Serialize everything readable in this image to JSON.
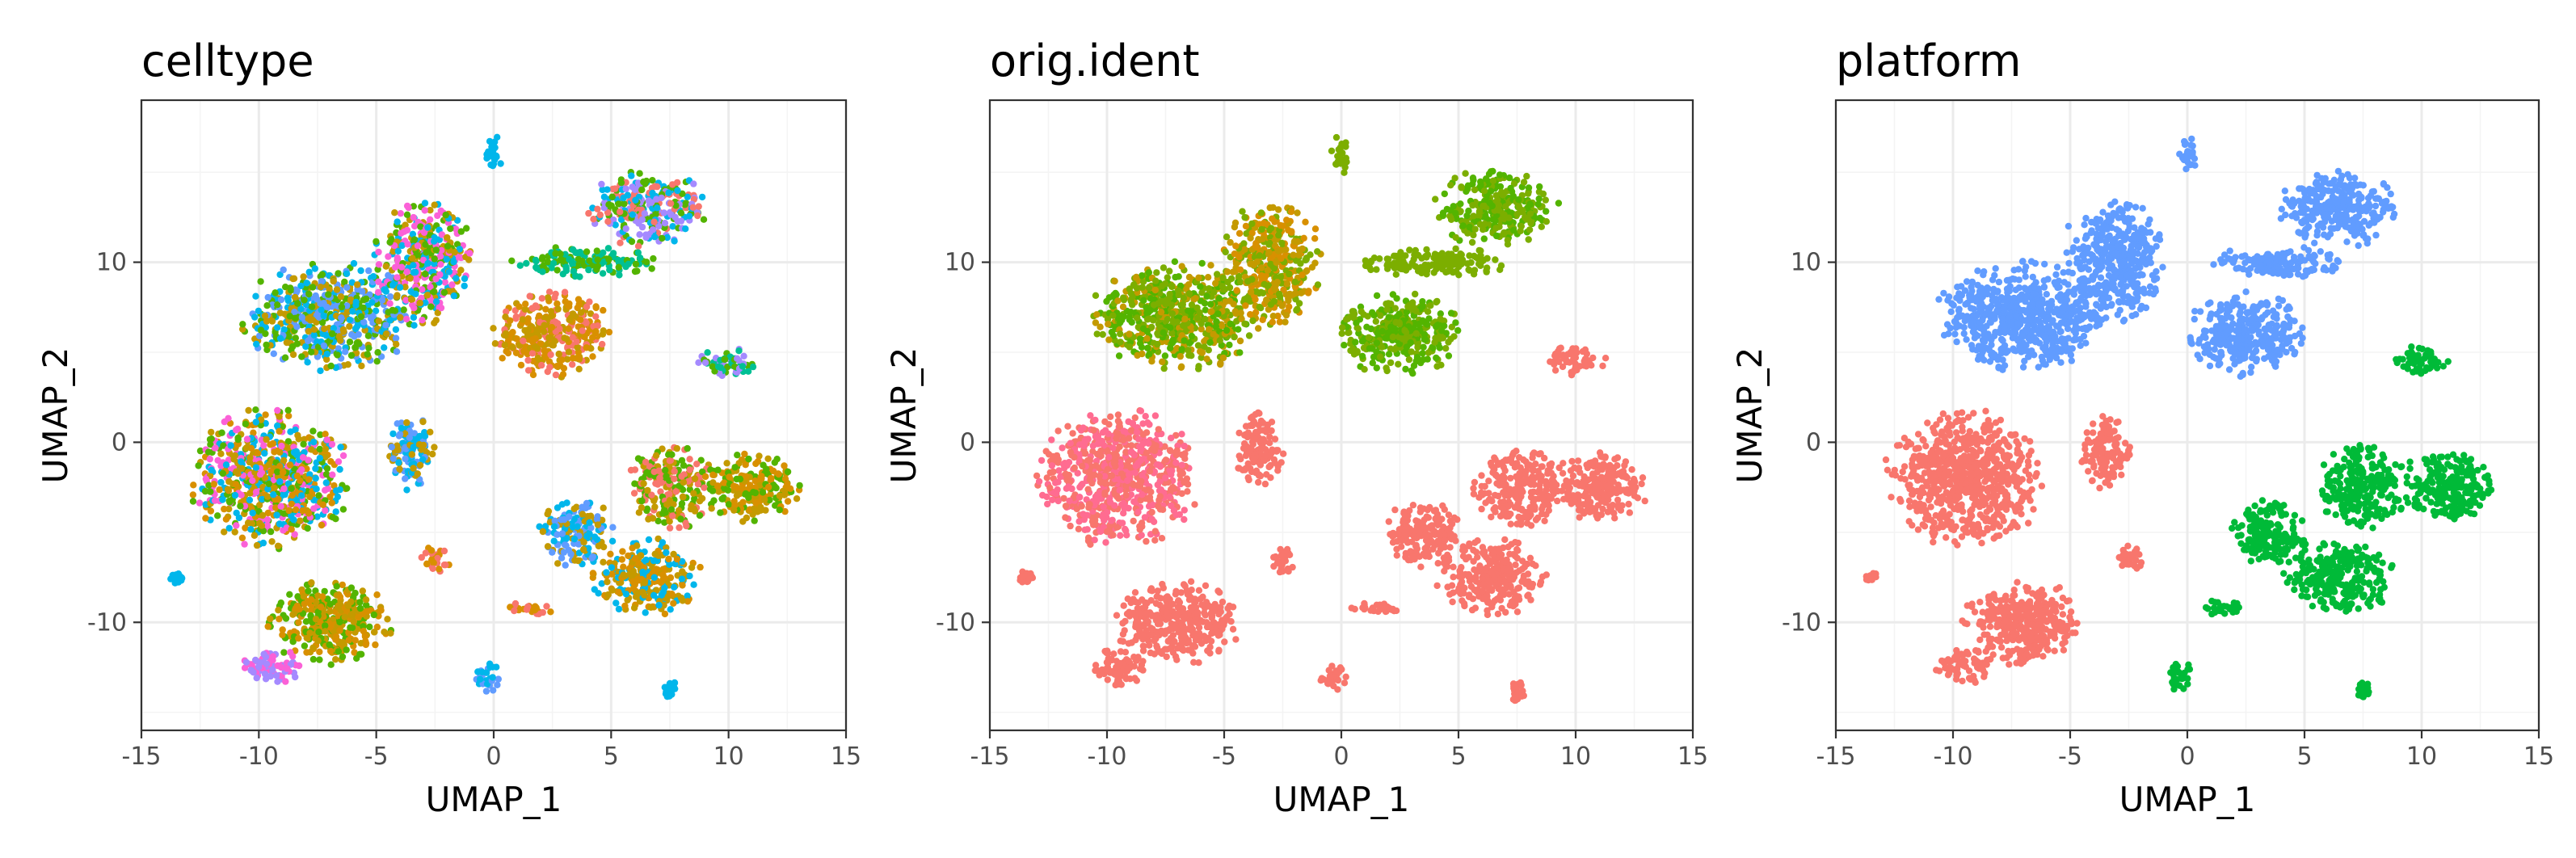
{
  "chart_data": [
    {
      "type": "scatter",
      "title": "celltype",
      "xlabel": "UMAP_1",
      "ylabel": "UMAP_2",
      "xlim": [
        -15,
        15
      ],
      "ylim": [
        -16,
        19
      ],
      "xticks": [
        "-15",
        "-10",
        "-5",
        "0",
        "5",
        "10",
        "15"
      ],
      "yticks": [
        "-10",
        "0",
        "10"
      ],
      "grid": true,
      "legend": "none",
      "colors": [
        "#F8766D",
        "#C49A00",
        "#53B400",
        "#00C094",
        "#00B6EB",
        "#A58AFF",
        "#FB61D7",
        "#D89000",
        "#619CFF"
      ],
      "clusters": [
        {
          "cx": -9.5,
          "cy": -2.0,
          "rx": 3.2,
          "ry": 3.6,
          "colors": [
            "#C49A00",
            "#53B400",
            "#FB61D7",
            "#00B6EB",
            "#D89000"
          ]
        },
        {
          "cx": -7.0,
          "cy": 7.0,
          "rx": 3.5,
          "ry": 2.8,
          "colors": [
            "#00B6EB",
            "#619CFF",
            "#C49A00",
            "#53B400"
          ]
        },
        {
          "cx": -3.0,
          "cy": 10.0,
          "rx": 2.0,
          "ry": 3.2,
          "colors": [
            "#C49A00",
            "#53B400",
            "#FB61D7",
            "#00B6EB"
          ]
        },
        {
          "cx": -3.5,
          "cy": -0.5,
          "rx": 1.0,
          "ry": 2.0,
          "colors": [
            "#619CFF",
            "#00B6EB",
            "#C49A00"
          ]
        },
        {
          "cx": -7.0,
          "cy": -10.0,
          "rx": 2.5,
          "ry": 2.2,
          "colors": [
            "#C49A00",
            "#D89000",
            "#53B400"
          ]
        },
        {
          "cx": -9.5,
          "cy": -12.5,
          "rx": 1.2,
          "ry": 1.0,
          "colors": [
            "#FB61D7",
            "#A58AFF"
          ]
        },
        {
          "cx": 2.5,
          "cy": 6.0,
          "rx": 2.4,
          "ry": 2.2,
          "colors": [
            "#D89000",
            "#F8766D",
            "#C49A00"
          ]
        },
        {
          "cx": 6.5,
          "cy": 13.0,
          "rx": 2.4,
          "ry": 2.0,
          "colors": [
            "#53B400",
            "#00B6EB",
            "#F8766D",
            "#A58AFF"
          ]
        },
        {
          "cx": 4.0,
          "cy": 10.0,
          "rx": 3.0,
          "ry": 0.8,
          "colors": [
            "#53B400",
            "#00C094"
          ]
        },
        {
          "cx": 3.5,
          "cy": -5.0,
          "rx": 1.5,
          "ry": 1.8,
          "colors": [
            "#00B6EB",
            "#619CFF",
            "#C49A00"
          ]
        },
        {
          "cx": 7.5,
          "cy": -2.5,
          "rx": 1.8,
          "ry": 2.2,
          "colors": [
            "#C49A00",
            "#F8766D",
            "#53B400"
          ]
        },
        {
          "cx": 11.0,
          "cy": -2.5,
          "rx": 2.0,
          "ry": 1.8,
          "colors": [
            "#D89000",
            "#C49A00",
            "#53B400"
          ]
        },
        {
          "cx": 6.5,
          "cy": -7.5,
          "rx": 2.2,
          "ry": 2.0,
          "colors": [
            "#D89000",
            "#C49A00",
            "#00B6EB"
          ]
        },
        {
          "cx": 10.0,
          "cy": 4.5,
          "rx": 1.2,
          "ry": 0.8,
          "colors": [
            "#00C094",
            "#A58AFF",
            "#53B400"
          ]
        },
        {
          "cx": 0.0,
          "cy": 16.0,
          "rx": 0.4,
          "ry": 1.0,
          "colors": [
            "#00B6EB"
          ]
        },
        {
          "cx": -0.3,
          "cy": -13.0,
          "rx": 0.6,
          "ry": 0.8,
          "colors": [
            "#619CFF",
            "#00B6EB"
          ]
        },
        {
          "cx": 7.5,
          "cy": -13.8,
          "rx": 0.3,
          "ry": 0.6,
          "colors": [
            "#00B6EB"
          ]
        },
        {
          "cx": 1.5,
          "cy": -9.2,
          "rx": 1.0,
          "ry": 0.4,
          "colors": [
            "#D89000",
            "#F8766D"
          ]
        },
        {
          "cx": -2.5,
          "cy": -6.5,
          "rx": 0.6,
          "ry": 0.8,
          "colors": [
            "#D89000",
            "#F8766D"
          ]
        },
        {
          "cx": -13.5,
          "cy": -7.5,
          "rx": 0.3,
          "ry": 0.3,
          "colors": [
            "#00B6EB"
          ]
        }
      ]
    },
    {
      "type": "scatter",
      "title": "orig.ident",
      "xlabel": "UMAP_1",
      "ylabel": "UMAP_2",
      "xlim": [
        -15,
        15
      ],
      "ylim": [
        -16,
        19
      ],
      "xticks": [
        "-15",
        "-10",
        "-5",
        "0",
        "5",
        "10",
        "15"
      ],
      "yticks": [
        "-10",
        "0",
        "10"
      ],
      "grid": true,
      "legend": "none",
      "colors": [
        "#F8766D",
        "#FF6C91",
        "#7CAE00",
        "#C49A00",
        "#53B400"
      ],
      "clusters": [
        {
          "cx": -9.5,
          "cy": -2.0,
          "rx": 3.2,
          "ry": 3.6,
          "colors": [
            "#FF6C91",
            "#F8766D"
          ]
        },
        {
          "cx": -7.0,
          "cy": 7.0,
          "rx": 3.5,
          "ry": 2.8,
          "colors": [
            "#7CAE00",
            "#C49A00",
            "#53B400"
          ]
        },
        {
          "cx": -3.0,
          "cy": 10.0,
          "rx": 2.0,
          "ry": 3.2,
          "colors": [
            "#7CAE00",
            "#C49A00",
            "#D89000"
          ]
        },
        {
          "cx": -3.5,
          "cy": -0.5,
          "rx": 1.0,
          "ry": 2.0,
          "colors": [
            "#F8766D"
          ]
        },
        {
          "cx": -7.0,
          "cy": -10.0,
          "rx": 2.5,
          "ry": 2.2,
          "colors": [
            "#F8766D"
          ]
        },
        {
          "cx": -9.5,
          "cy": -12.5,
          "rx": 1.2,
          "ry": 1.0,
          "colors": [
            "#F8766D"
          ]
        },
        {
          "cx": 2.5,
          "cy": 6.0,
          "rx": 2.4,
          "ry": 2.2,
          "colors": [
            "#7CAE00",
            "#53B400"
          ]
        },
        {
          "cx": 6.5,
          "cy": 13.0,
          "rx": 2.4,
          "ry": 2.0,
          "colors": [
            "#7CAE00",
            "#53B400"
          ]
        },
        {
          "cx": 4.0,
          "cy": 10.0,
          "rx": 3.0,
          "ry": 0.8,
          "colors": [
            "#7CAE00"
          ]
        },
        {
          "cx": 3.5,
          "cy": -5.0,
          "rx": 1.5,
          "ry": 1.8,
          "colors": [
            "#F8766D"
          ]
        },
        {
          "cx": 7.5,
          "cy": -2.5,
          "rx": 1.8,
          "ry": 2.2,
          "colors": [
            "#F8766D"
          ]
        },
        {
          "cx": 11.0,
          "cy": -2.5,
          "rx": 2.0,
          "ry": 1.8,
          "colors": [
            "#F8766D"
          ]
        },
        {
          "cx": 6.5,
          "cy": -7.5,
          "rx": 2.2,
          "ry": 2.0,
          "colors": [
            "#F8766D"
          ]
        },
        {
          "cx": 10.0,
          "cy": 4.5,
          "rx": 1.2,
          "ry": 0.8,
          "colors": [
            "#F8766D"
          ]
        },
        {
          "cx": 0.0,
          "cy": 16.0,
          "rx": 0.4,
          "ry": 1.0,
          "colors": [
            "#7CAE00"
          ]
        },
        {
          "cx": -0.3,
          "cy": -13.0,
          "rx": 0.6,
          "ry": 0.8,
          "colors": [
            "#F8766D"
          ]
        },
        {
          "cx": 7.5,
          "cy": -13.8,
          "rx": 0.3,
          "ry": 0.6,
          "colors": [
            "#F8766D"
          ]
        },
        {
          "cx": 1.5,
          "cy": -9.2,
          "rx": 1.0,
          "ry": 0.4,
          "colors": [
            "#F8766D"
          ]
        },
        {
          "cx": -2.5,
          "cy": -6.5,
          "rx": 0.6,
          "ry": 0.8,
          "colors": [
            "#F8766D"
          ]
        },
        {
          "cx": -13.5,
          "cy": -7.5,
          "rx": 0.3,
          "ry": 0.3,
          "colors": [
            "#F8766D"
          ]
        }
      ]
    },
    {
      "type": "scatter",
      "title": "platform",
      "xlabel": "UMAP_1",
      "ylabel": "UMAP_2",
      "xlim": [
        -15,
        15
      ],
      "ylim": [
        -16,
        19
      ],
      "xticks": [
        "-15",
        "-10",
        "-5",
        "0",
        "5",
        "10",
        "15"
      ],
      "yticks": [
        "-10",
        "0",
        "10"
      ],
      "grid": true,
      "legend": "none",
      "colors": [
        "#F8766D",
        "#00BA38",
        "#619CFF"
      ],
      "clusters": [
        {
          "cx": -9.5,
          "cy": -2.0,
          "rx": 3.2,
          "ry": 3.6,
          "colors": [
            "#F8766D"
          ]
        },
        {
          "cx": -7.0,
          "cy": 7.0,
          "rx": 3.5,
          "ry": 2.8,
          "colors": [
            "#619CFF"
          ]
        },
        {
          "cx": -3.0,
          "cy": 10.0,
          "rx": 2.0,
          "ry": 3.2,
          "colors": [
            "#619CFF"
          ]
        },
        {
          "cx": -3.5,
          "cy": -0.5,
          "rx": 1.0,
          "ry": 2.0,
          "colors": [
            "#F8766D"
          ]
        },
        {
          "cx": -7.0,
          "cy": -10.0,
          "rx": 2.5,
          "ry": 2.2,
          "colors": [
            "#F8766D"
          ]
        },
        {
          "cx": -9.5,
          "cy": -12.5,
          "rx": 1.2,
          "ry": 1.0,
          "colors": [
            "#F8766D"
          ]
        },
        {
          "cx": 2.5,
          "cy": 6.0,
          "rx": 2.4,
          "ry": 2.2,
          "colors": [
            "#619CFF"
          ]
        },
        {
          "cx": 6.5,
          "cy": 13.0,
          "rx": 2.4,
          "ry": 2.0,
          "colors": [
            "#619CFF"
          ]
        },
        {
          "cx": 4.0,
          "cy": 10.0,
          "rx": 3.0,
          "ry": 0.8,
          "colors": [
            "#619CFF"
          ]
        },
        {
          "cx": 3.5,
          "cy": -5.0,
          "rx": 1.5,
          "ry": 1.8,
          "colors": [
            "#00BA38"
          ]
        },
        {
          "cx": 7.5,
          "cy": -2.5,
          "rx": 1.8,
          "ry": 2.2,
          "colors": [
            "#00BA38"
          ]
        },
        {
          "cx": 11.0,
          "cy": -2.5,
          "rx": 2.0,
          "ry": 1.8,
          "colors": [
            "#00BA38"
          ]
        },
        {
          "cx": 6.5,
          "cy": -7.5,
          "rx": 2.2,
          "ry": 2.0,
          "colors": [
            "#00BA38"
          ]
        },
        {
          "cx": 10.0,
          "cy": 4.5,
          "rx": 1.2,
          "ry": 0.8,
          "colors": [
            "#00BA38"
          ]
        },
        {
          "cx": 0.0,
          "cy": 16.0,
          "rx": 0.4,
          "ry": 1.0,
          "colors": [
            "#619CFF"
          ]
        },
        {
          "cx": -0.3,
          "cy": -13.0,
          "rx": 0.6,
          "ry": 0.8,
          "colors": [
            "#00BA38"
          ]
        },
        {
          "cx": 7.5,
          "cy": -13.8,
          "rx": 0.3,
          "ry": 0.6,
          "colors": [
            "#00BA38"
          ]
        },
        {
          "cx": 1.5,
          "cy": -9.2,
          "rx": 1.0,
          "ry": 0.4,
          "colors": [
            "#00BA38"
          ]
        },
        {
          "cx": -2.5,
          "cy": -6.5,
          "rx": 0.6,
          "ry": 0.8,
          "colors": [
            "#F8766D"
          ]
        },
        {
          "cx": -13.5,
          "cy": -7.5,
          "rx": 0.3,
          "ry": 0.3,
          "colors": [
            "#F8766D"
          ]
        }
      ]
    }
  ]
}
